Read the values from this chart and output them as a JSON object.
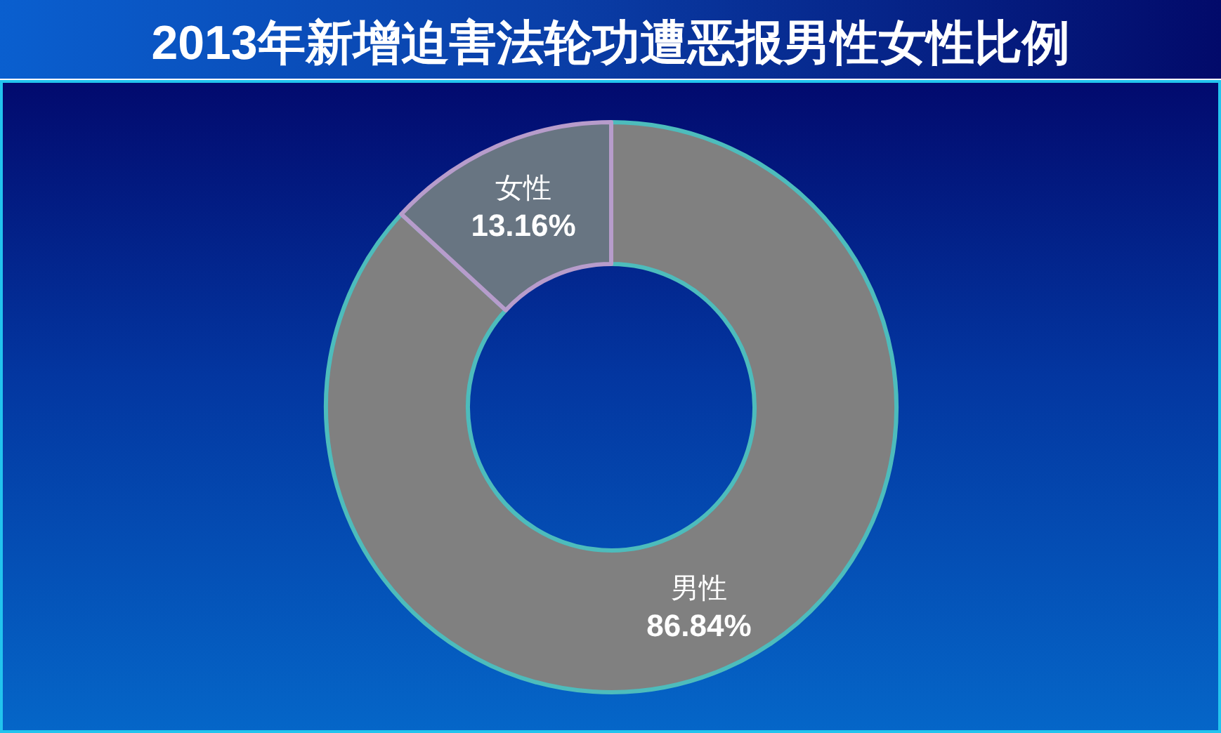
{
  "chart_data": {
    "type": "donut",
    "title": "2013年新增迫害法轮功遭恶报男性女性比例",
    "categories": [
      "男性",
      "女性"
    ],
    "values": [
      86.84,
      13.16
    ],
    "colors": [
      "#808080",
      "#687582"
    ],
    "value_labels": [
      "86.84%",
      "13.16%"
    ]
  }
}
